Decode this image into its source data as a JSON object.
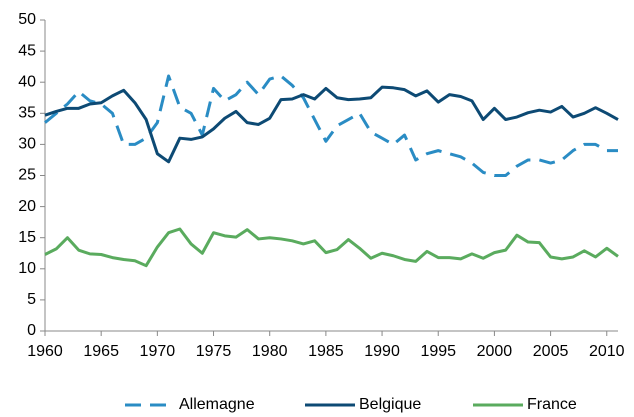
{
  "chart_data": {
    "type": "line",
    "x": [
      1960,
      1961,
      1962,
      1963,
      1964,
      1965,
      1966,
      1967,
      1968,
      1969,
      1970,
      1971,
      1972,
      1973,
      1974,
      1975,
      1976,
      1977,
      1978,
      1979,
      1980,
      1981,
      1982,
      1983,
      1984,
      1985,
      1986,
      1987,
      1988,
      1989,
      1990,
      1991,
      1992,
      1993,
      1994,
      1995,
      1996,
      1997,
      1998,
      1999,
      2000,
      2001,
      2002,
      2003,
      2004,
      2005,
      2006,
      2007,
      2008,
      2009,
      2010,
      2011
    ],
    "series": [
      {
        "name": "Allemagne",
        "color": "#2a8cc4",
        "dashed": true,
        "values": [
          33.5,
          35,
          36.5,
          38.5,
          37,
          36.5,
          35,
          30,
          30,
          31,
          33.5,
          41,
          36,
          35,
          31.5,
          39,
          37,
          38,
          40,
          38,
          40.5,
          41,
          39.5,
          37.5,
          34,
          30.5,
          33,
          34,
          35,
          32,
          31,
          30,
          31.5,
          27.5,
          28.5,
          29,
          28.5,
          28,
          27,
          25.5,
          25,
          25,
          26.5,
          27.5,
          27.5,
          27,
          27.5,
          29,
          30,
          30,
          29,
          29
        ]
      },
      {
        "name": "Belgique",
        "color": "#0d4a74",
        "dashed": false,
        "values": [
          34.7,
          35.3,
          35.8,
          35.8,
          36.5,
          36.7,
          37.8,
          38.7,
          36.7,
          34,
          28.5,
          27.2,
          31,
          30.8,
          31.2,
          32.5,
          34.2,
          35.3,
          33.5,
          33.2,
          34.2,
          37.2,
          37.3,
          38,
          37.3,
          39,
          37.5,
          37.2,
          37.3,
          37.5,
          39.2,
          39.1,
          38.8,
          37.8,
          38.6,
          36.8,
          38,
          37.7,
          37,
          34,
          35.8,
          34,
          34.4,
          35.1,
          35.5,
          35.2,
          36.1,
          34.4,
          35,
          35.9,
          35,
          34
        ]
      },
      {
        "name": "France",
        "color": "#5aab5e",
        "dashed": false,
        "values": [
          12.3,
          13.2,
          15,
          13,
          12.4,
          12.3,
          11.8,
          11.5,
          11.3,
          10.5,
          13.5,
          15.8,
          16.4,
          14,
          12.5,
          15.8,
          15.3,
          15.1,
          16.3,
          14.8,
          15,
          14.8,
          14.5,
          14,
          14.5,
          12.6,
          13.1,
          14.7,
          13.3,
          11.7,
          12.5,
          12.1,
          11.5,
          11.2,
          12.8,
          11.8,
          11.8,
          11.6,
          12.4,
          11.7,
          12.6,
          13,
          15.4,
          14.3,
          14.2,
          11.9,
          11.6,
          11.9,
          12.9,
          11.9,
          13.3,
          12
        ]
      }
    ],
    "xlim": [
      1960,
      2011
    ],
    "xticks": [
      1960,
      1965,
      1970,
      1975,
      1980,
      1985,
      1990,
      1995,
      2000,
      2005,
      2010
    ],
    "ylim": [
      0,
      50
    ],
    "yticks": [
      0,
      5,
      10,
      15,
      20,
      25,
      30,
      35,
      40,
      45,
      50
    ],
    "legend": "bottom"
  }
}
